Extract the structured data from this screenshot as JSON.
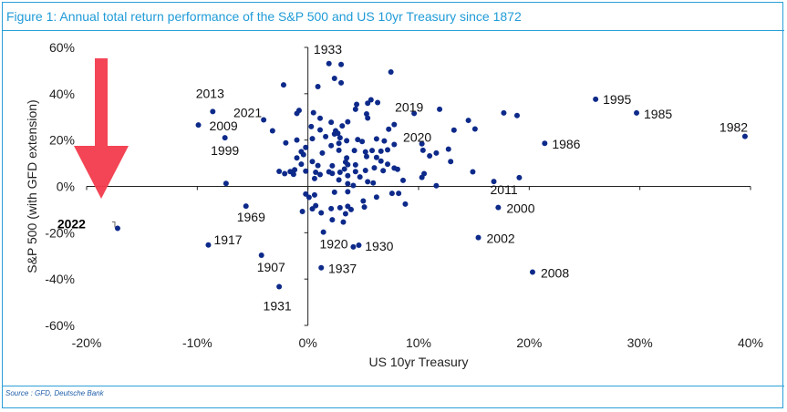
{
  "title": "Figure 1: Annual total return performance of the S&P 500 and US 10yr Treasury since 1872",
  "source": "Source : GFD, Deutsche Bank",
  "colors": {
    "frame": "#2a9fd8",
    "title": "#1f9bd7",
    "points": "#0d2a8a",
    "arrow": "#f23b4c"
  },
  "chart_data": {
    "type": "scatter",
    "xlabel": "US 10yr Treasury",
    "ylabel": "S&P 500 (with GFD extension)",
    "xlim": [
      -20,
      40
    ],
    "ylim": [
      -60,
      60
    ],
    "xticks": [
      -20,
      -10,
      0,
      10,
      20,
      30,
      40
    ],
    "yticks": [
      -60,
      -40,
      -20,
      0,
      20,
      40,
      60
    ],
    "xtick_labels": [
      "-20%",
      "-10%",
      "0%",
      "10%",
      "20%",
      "30%",
      "40%"
    ],
    "ytick_labels": [
      "-60%",
      "-40%",
      "-20%",
      "0%",
      "20%",
      "40%",
      "60%"
    ],
    "grid": false,
    "units": "percent",
    "labeled_points": [
      {
        "label": "1933",
        "x": 1.8,
        "y": 53
      },
      {
        "label": "2013",
        "x": -8.6,
        "y": 32.3
      },
      {
        "label": "2009",
        "x": -9.9,
        "y": 26.5
      },
      {
        "label": "1999",
        "x": -7.5,
        "y": 21
      },
      {
        "label": "2021",
        "x": -4,
        "y": 28.7
      },
      {
        "label": "2019",
        "x": 9.6,
        "y": 31.5
      },
      {
        "label": "2020",
        "x": 10.3,
        "y": 18.4
      },
      {
        "label": "1995",
        "x": 26,
        "y": 37.6
      },
      {
        "label": "1985",
        "x": 29.7,
        "y": 31.7
      },
      {
        "label": "1982",
        "x": 39.5,
        "y": 21.6
      },
      {
        "label": "1986",
        "x": 21.4,
        "y": 18.6
      },
      {
        "label": "2011",
        "x": 16.8,
        "y": 2.1
      },
      {
        "label": "2000",
        "x": 17.2,
        "y": -9.1
      },
      {
        "label": "2002",
        "x": 15.4,
        "y": -22.1
      },
      {
        "label": "2008",
        "x": 20.3,
        "y": -37
      },
      {
        "label": "1969",
        "x": -5.6,
        "y": -8.5
      },
      {
        "label": "1917",
        "x": -9,
        "y": -25.3
      },
      {
        "label": "1907",
        "x": -4.2,
        "y": -29.7
      },
      {
        "label": "1931",
        "x": -2.6,
        "y": -43.3
      },
      {
        "label": "1920",
        "x": 1.3,
        "y": -19.7
      },
      {
        "label": "1930",
        "x": 4.5,
        "y": -25.3
      },
      {
        "label": "1937",
        "x": 1.1,
        "y": -35
      },
      {
        "label": "2022",
        "x": -17.2,
        "y": -18.1
      }
    ],
    "points": [
      {
        "x": -2.2,
        "y": 43.8
      },
      {
        "x": -1,
        "y": 31.5
      },
      {
        "x": -0.8,
        "y": 32.8
      },
      {
        "x": -3.2,
        "y": 24
      },
      {
        "x": -2,
        "y": 18.8
      },
      {
        "x": -1,
        "y": 20
      },
      {
        "x": -0.6,
        "y": 15
      },
      {
        "x": 0.4,
        "y": 20.6
      },
      {
        "x": 0.3,
        "y": 25.8
      },
      {
        "x": 0.5,
        "y": 31.8
      },
      {
        "x": 1.1,
        "y": 29.4
      },
      {
        "x": 2.4,
        "y": 46.6
      },
      {
        "x": 3,
        "y": 44.7
      },
      {
        "x": 3,
        "y": 52.6
      },
      {
        "x": 1.9,
        "y": 53
      },
      {
        "x": 0.9,
        "y": 43.1
      },
      {
        "x": 7.5,
        "y": 49.4
      },
      {
        "x": 5.7,
        "y": 37.4
      },
      {
        "x": 5.4,
        "y": 35.9
      },
      {
        "x": 4.4,
        "y": 35.4
      },
      {
        "x": 4.3,
        "y": 33.3
      },
      {
        "x": 5.3,
        "y": 31.3
      },
      {
        "x": 5.4,
        "y": 29.5
      },
      {
        "x": 6.3,
        "y": 36.2
      },
      {
        "x": 3.6,
        "y": 27.9
      },
      {
        "x": 3.1,
        "y": 26.1
      },
      {
        "x": 2.1,
        "y": 27.7
      },
      {
        "x": 2.5,
        "y": 24
      },
      {
        "x": 1.1,
        "y": 24.4
      },
      {
        "x": 1.6,
        "y": 21.5
      },
      {
        "x": 2.4,
        "y": 22.6
      },
      {
        "x": 2.7,
        "y": 22.9
      },
      {
        "x": 2.9,
        "y": 21
      },
      {
        "x": 2.8,
        "y": 18.6
      },
      {
        "x": 2.1,
        "y": 17.6
      },
      {
        "x": 3.5,
        "y": 19.7
      },
      {
        "x": 4.5,
        "y": 20.2
      },
      {
        "x": 4.9,
        "y": 19.4
      },
      {
        "x": 6.2,
        "y": 20.5
      },
      {
        "x": 7.3,
        "y": 24.7
      },
      {
        "x": 7.8,
        "y": 26.7
      },
      {
        "x": 6.9,
        "y": 19.6
      },
      {
        "x": 7.8,
        "y": 18.1
      },
      {
        "x": 7.2,
        "y": 15.8
      },
      {
        "x": 6.6,
        "y": 15.2
      },
      {
        "x": 5.2,
        "y": 14.9
      },
      {
        "x": 4.2,
        "y": 15.5
      },
      {
        "x": 2.8,
        "y": 15.6
      },
      {
        "x": 1.3,
        "y": 14.4
      },
      {
        "x": -0.2,
        "y": 16.8
      },
      {
        "x": -0.4,
        "y": 13.7
      },
      {
        "x": -1,
        "y": 12.3
      },
      {
        "x": -0.6,
        "y": 9.6
      },
      {
        "x": -1.2,
        "y": 7.2
      },
      {
        "x": -1.6,
        "y": 6.4
      },
      {
        "x": -2.6,
        "y": 6.5
      },
      {
        "x": -2.1,
        "y": 5.5
      },
      {
        "x": -1.3,
        "y": 5.2
      },
      {
        "x": -0.2,
        "y": 6.6
      },
      {
        "x": 0.4,
        "y": 10.7
      },
      {
        "x": 0.9,
        "y": 9
      },
      {
        "x": 0.7,
        "y": 6.1
      },
      {
        "x": 1.1,
        "y": 5.1
      },
      {
        "x": 0.6,
        "y": 3.4
      },
      {
        "x": 2.2,
        "y": 5.6
      },
      {
        "x": 2.2,
        "y": 8.9
      },
      {
        "x": 3.4,
        "y": 10.5
      },
      {
        "x": 3.6,
        "y": 9.4
      },
      {
        "x": 4.3,
        "y": 9.3
      },
      {
        "x": 3.5,
        "y": 12.3
      },
      {
        "x": 5.3,
        "y": 12.9
      },
      {
        "x": 5.8,
        "y": 15.5
      },
      {
        "x": 6.2,
        "y": 12.5
      },
      {
        "x": 6.6,
        "y": 10.9
      },
      {
        "x": 7.2,
        "y": 9.6
      },
      {
        "x": 7.8,
        "y": 7.9
      },
      {
        "x": 6.8,
        "y": 6.8
      },
      {
        "x": 6,
        "y": 8
      },
      {
        "x": 5.2,
        "y": 6.9
      },
      {
        "x": 4.3,
        "y": 6.4
      },
      {
        "x": 4.7,
        "y": 4.1
      },
      {
        "x": 3.6,
        "y": 4.6
      },
      {
        "x": 2.9,
        "y": 6.1
      },
      {
        "x": 1.9,
        "y": 6.3
      },
      {
        "x": 3.3,
        "y": 7.5
      },
      {
        "x": 2.8,
        "y": 2.8
      },
      {
        "x": 3.6,
        "y": 1.2
      },
      {
        "x": 4.1,
        "y": 0.4
      },
      {
        "x": 5.4,
        "y": 2
      },
      {
        "x": 5.9,
        "y": 1.5
      },
      {
        "x": 8.1,
        "y": 7.4
      },
      {
        "x": 10.4,
        "y": 15.6
      },
      {
        "x": 11.6,
        "y": 14.4
      },
      {
        "x": 11,
        "y": 13.2
      },
      {
        "x": 12.7,
        "y": 16.1
      },
      {
        "x": 13.2,
        "y": 24.3
      },
      {
        "x": 14.5,
        "y": 28.5
      },
      {
        "x": 15.1,
        "y": 24.8
      },
      {
        "x": 12.9,
        "y": 10.7
      },
      {
        "x": 14.9,
        "y": 6.3
      },
      {
        "x": 11.6,
        "y": 0.3
      },
      {
        "x": 10.5,
        "y": 5.5
      },
      {
        "x": 10.3,
        "y": 3.9
      },
      {
        "x": 11.9,
        "y": 33.3
      },
      {
        "x": 17.7,
        "y": 31.7
      },
      {
        "x": 18.9,
        "y": 30.6
      },
      {
        "x": 19.1,
        "y": 3.8
      },
      {
        "x": 8.6,
        "y": 2.6
      },
      {
        "x": 7.6,
        "y": -3
      },
      {
        "x": 8.2,
        "y": -3
      },
      {
        "x": 8.8,
        "y": -7.6
      },
      {
        "x": 6.2,
        "y": -4.6
      },
      {
        "x": 5,
        "y": -6.3
      },
      {
        "x": 3.6,
        "y": -2.3
      },
      {
        "x": 2.4,
        "y": -2.5
      },
      {
        "x": 0.6,
        "y": -3.7
      },
      {
        "x": 0.1,
        "y": -4.7
      },
      {
        "x": -0.2,
        "y": -3.3
      },
      {
        "x": 0.7,
        "y": -8.3
      },
      {
        "x": 0.4,
        "y": -9.7
      },
      {
        "x": -0.5,
        "y": -10.8
      },
      {
        "x": 1.2,
        "y": -11.4
      },
      {
        "x": 2.1,
        "y": -9.6
      },
      {
        "x": 2.9,
        "y": -9.2
      },
      {
        "x": 3.6,
        "y": -8.6
      },
      {
        "x": 3.9,
        "y": -10
      },
      {
        "x": 5.1,
        "y": -8.9
      },
      {
        "x": 3.4,
        "y": -11.8
      },
      {
        "x": 2.2,
        "y": -14.4
      },
      {
        "x": 3.2,
        "y": -15.4
      },
      {
        "x": 1.4,
        "y": -19.7
      },
      {
        "x": 4.1,
        "y": -26.1
      },
      {
        "x": 4.6,
        "y": -25.4
      },
      {
        "x": 1.2,
        "y": -35.1
      },
      {
        "x": -2.6,
        "y": -43.3
      },
      {
        "x": -4.2,
        "y": -29.7
      },
      {
        "x": -5.6,
        "y": -8.5
      },
      {
        "x": -9,
        "y": -25.3
      },
      {
        "x": -7.4,
        "y": 1.3
      },
      {
        "x": -7.5,
        "y": 21
      },
      {
        "x": -9.9,
        "y": 26.5
      },
      {
        "x": -8.6,
        "y": 32.3
      },
      {
        "x": -4,
        "y": 28.7
      },
      {
        "x": 9.6,
        "y": 31.5
      },
      {
        "x": 10.3,
        "y": 18.4
      },
      {
        "x": 26,
        "y": 37.6
      },
      {
        "x": 29.7,
        "y": 31.7
      },
      {
        "x": 39.5,
        "y": 21.6
      },
      {
        "x": 21.4,
        "y": 18.6
      },
      {
        "x": 16.8,
        "y": 2.1
      },
      {
        "x": 17.2,
        "y": -9.1
      },
      {
        "x": 15.4,
        "y": -22.1
      },
      {
        "x": 20.3,
        "y": -37
      },
      {
        "x": -17.2,
        "y": -18.1
      }
    ],
    "highlight": {
      "label": "2022",
      "annotation": "arrow"
    }
  }
}
